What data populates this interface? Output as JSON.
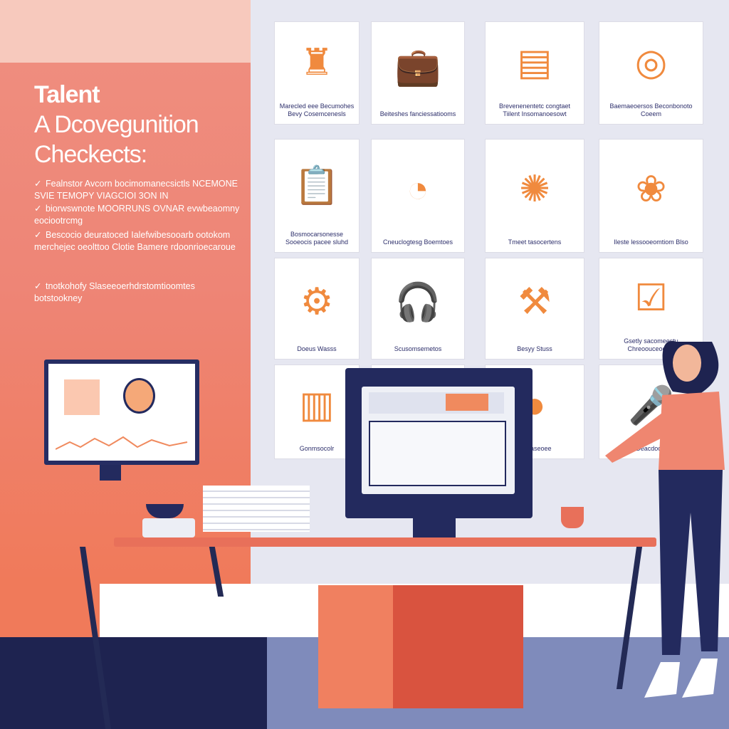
{
  "title": "Talent A Dcovegunition Checkects:",
  "title_lines": [
    "Talent",
    "A Dcovegunition",
    "Checkects:"
  ],
  "bullets": [
    "Fealnstor Avcorn bocimomanecsictls NCEMONE SVIE TEMOPY VIAGCIOI 3ON IN",
    "biorwswnote MOORRUNS OVNAR evwbeaomny eociootrcmg",
    "Bescocio deuratoced Ialefwibesooarb ootokom merchejec oeolttoo Clotie Bamere rdoonrioecaroue",
    "tnotkohofy Slaseeoerhdrstomtioomtes botstookney"
  ],
  "cards": [
    {
      "icon": "chess-icon",
      "caption": "Marecled eee Becumohes Bevy Cosemcenesls"
    },
    {
      "icon": "briefcase-icon",
      "caption": "Beiteshes fanciessatiooms"
    },
    {
      "icon": "document-icon",
      "caption": "Brevenenentetc congtaet Tiilent Insomanoesowt"
    },
    {
      "icon": "target-icon",
      "caption": "Baemaeoersos Beconbonoto Coeem"
    },
    {
      "icon": "clipboard-icon",
      "caption": "Bosmocarsonesse Sooeocis pacee sluhd"
    },
    {
      "icon": "clock-icon",
      "caption": "Cneuclogtesg Boemtoes"
    },
    {
      "icon": "brain-icon",
      "caption": "Tmeet tasocertens"
    },
    {
      "icon": "lotus-icon",
      "caption": "Ileste lessooeomtiom Blso"
    },
    {
      "icon": "gears-icon",
      "caption": "Doeus Wasss"
    },
    {
      "icon": "headset-icon",
      "caption": "Scusomsemetos"
    },
    {
      "icon": "toolbox-icon",
      "caption": "Besyy Stuss"
    },
    {
      "icon": "checklist-icon",
      "caption": "Gsetly sacomeestu Chreoouceoeloe"
    },
    {
      "icon": "chart-icon",
      "caption": "Gonmsocolr"
    },
    {
      "icon": "",
      "caption": ""
    },
    {
      "icon": "coin-icon",
      "caption": "Ioueaseoee"
    },
    {
      "icon": "microphone-icon",
      "caption": "Deacdocio"
    }
  ],
  "colors": {
    "accent": "#f08060",
    "navy": "#232a5e",
    "panel": "#ee8576",
    "background": "#e6e7f1"
  }
}
